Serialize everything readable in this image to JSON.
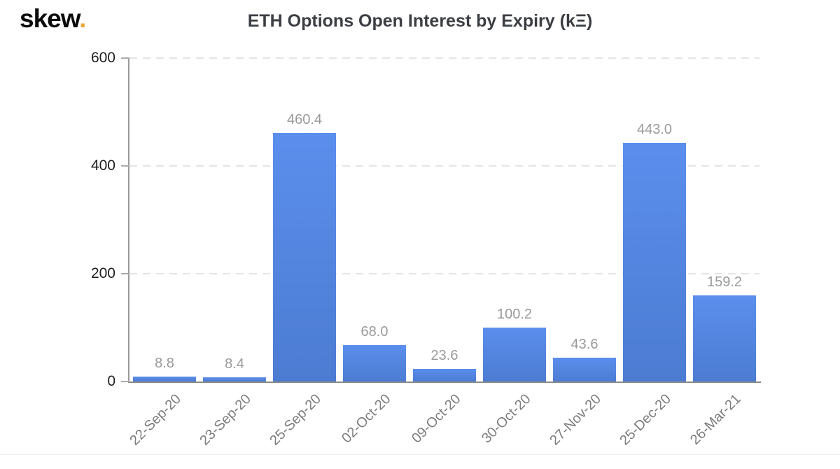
{
  "logo": {
    "text": "skew",
    "dot": "."
  },
  "title": "ETH Options Open Interest by Expiry (kΞ)",
  "chart_data": {
    "type": "bar",
    "title": "ETH Options Open Interest by Expiry (kΞ)",
    "categories": [
      "22-Sep-20",
      "23-Sep-20",
      "25-Sep-20",
      "02-Oct-20",
      "09-Oct-20",
      "30-Oct-20",
      "27-Nov-20",
      "25-Dec-20",
      "26-Mar-21"
    ],
    "values": [
      8.8,
      8.4,
      460.4,
      68.0,
      23.6,
      100.2,
      43.6,
      443.0,
      159.2
    ],
    "value_labels": [
      "8.8",
      "8.4",
      "460.4",
      "68.0",
      "23.6",
      "100.2",
      "43.6",
      "443.0",
      "159.2"
    ],
    "xlabel": "",
    "ylabel": "",
    "ylim": [
      0,
      600
    ],
    "yticks": [
      0,
      200,
      400,
      600
    ],
    "grid": "horizontal-dashed",
    "legend": false,
    "colors": {
      "bar_top": "#5b8eed",
      "bar_bottom": "#4c7cd2",
      "value_label": "#9a9a9a",
      "axis_line": "#8a8a8a",
      "gridline": "#e4e4e4",
      "y_tick_label": "#1f1f1f",
      "x_tick_label": "#7d7d7d",
      "title": "#3b3e42",
      "logo_text": "#0a0a0a",
      "logo_dot": "#f0a63a"
    }
  }
}
